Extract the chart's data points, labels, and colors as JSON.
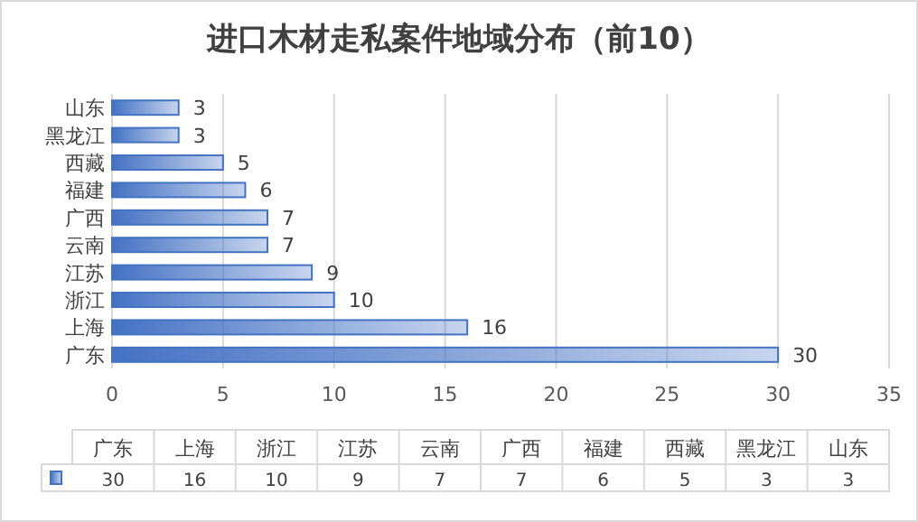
{
  "chart_data": [
    {
      "type": "bar",
      "orientation": "horizontal",
      "title": "进口木材走私案件地域分布（前10）",
      "categories": [
        "山东",
        "黑龙江",
        "西藏",
        "福建",
        "广西",
        "云南",
        "江苏",
        "浙江",
        "上海",
        "广东"
      ],
      "values": [
        3,
        3,
        5,
        6,
        7,
        7,
        9,
        10,
        16,
        30
      ],
      "color": "#4472c4",
      "xlim": [
        0,
        35
      ],
      "xticks": [
        0,
        5,
        10,
        15,
        20,
        25,
        30,
        35
      ],
      "grid": "x",
      "data_labels": true
    },
    {
      "type": "other",
      "categories": [
        "广东",
        "上海",
        "浙江",
        "江苏",
        "云南",
        "广西",
        "福建",
        "西藏",
        "黑龙江",
        "山东"
      ],
      "values": [
        30,
        16,
        10,
        9,
        7,
        7,
        6,
        5,
        3,
        3
      ],
      "color": "#4472c4",
      "data_labels": true
    }
  ]
}
